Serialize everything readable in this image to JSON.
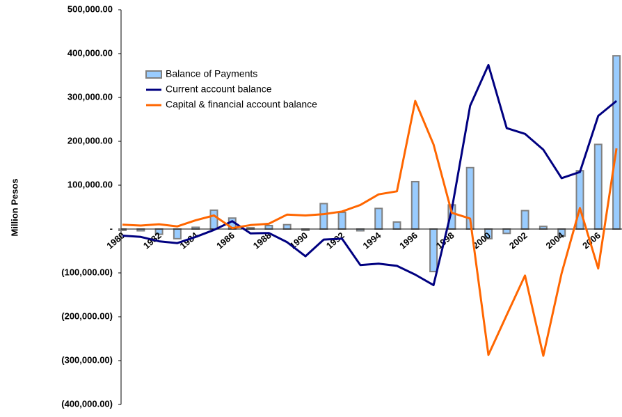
{
  "chart_data": {
    "type": "bar",
    "y_label": "Million Pesos",
    "categories": [
      "1980",
      null,
      "1982",
      null,
      "1984",
      null,
      "1986",
      null,
      "1988",
      null,
      "1990",
      null,
      "1992",
      null,
      "1994",
      null,
      "1996",
      null,
      "1998",
      null,
      "2000",
      null,
      "2002",
      null,
      "2004",
      null,
      "2006",
      null
    ],
    "series": [
      {
        "name": "Balance of Payments",
        "type": "bar",
        "color": "#99ccff",
        "edge_color": "#808080",
        "values": [
          -3000,
          -4000,
          -12000,
          -22000,
          4000,
          43000,
          25000,
          3000,
          8000,
          10000,
          -3000,
          58000,
          38000,
          -4000,
          47000,
          16000,
          108000,
          -97000,
          55000,
          140000,
          -22000,
          -10000,
          42000,
          6000,
          -16000,
          133000,
          193000,
          395000
        ]
      },
      {
        "name": "Current account balance",
        "type": "line",
        "color": "#000080",
        "values": [
          -15000,
          -18000,
          -28000,
          -32000,
          -18000,
          -2000,
          18000,
          -10000,
          -9000,
          -30000,
          -62000,
          -24000,
          -22000,
          -82000,
          -79000,
          -84000,
          -104000,
          -128000,
          45000,
          281000,
          374000,
          230000,
          217000,
          181000,
          116000,
          130000,
          258000,
          292000
        ]
      },
      {
        "name": "Capital & financial account balance",
        "type": "line",
        "color": "#ff6600",
        "values": [
          10000,
          8000,
          11000,
          6000,
          20000,
          31000,
          2000,
          9000,
          12000,
          33000,
          31000,
          34000,
          40000,
          55000,
          79000,
          86000,
          292000,
          193000,
          37000,
          24000,
          -287000,
          -196000,
          -106000,
          -289000,
          -101000,
          48000,
          -90000,
          184000
        ]
      }
    ],
    "ylim": [
      -400000,
      500000
    ],
    "yticks": [
      {
        "value": -400000,
        "label": "(400,000.00)"
      },
      {
        "value": -300000,
        "label": "(300,000.00)"
      },
      {
        "value": -200000,
        "label": "(200,000.00)"
      },
      {
        "value": -100000,
        "label": "(100,000.00)"
      },
      {
        "value": 0,
        "label": "-"
      },
      {
        "value": 100000,
        "label": "100,000.00"
      },
      {
        "value": 200000,
        "label": "200,000.00"
      },
      {
        "value": 300000,
        "label": "300,000.00"
      },
      {
        "value": 400000,
        "label": "400,000.00"
      },
      {
        "value": 500000,
        "label": "500,000.00"
      }
    ],
    "grid": false,
    "legend": "upper left"
  }
}
